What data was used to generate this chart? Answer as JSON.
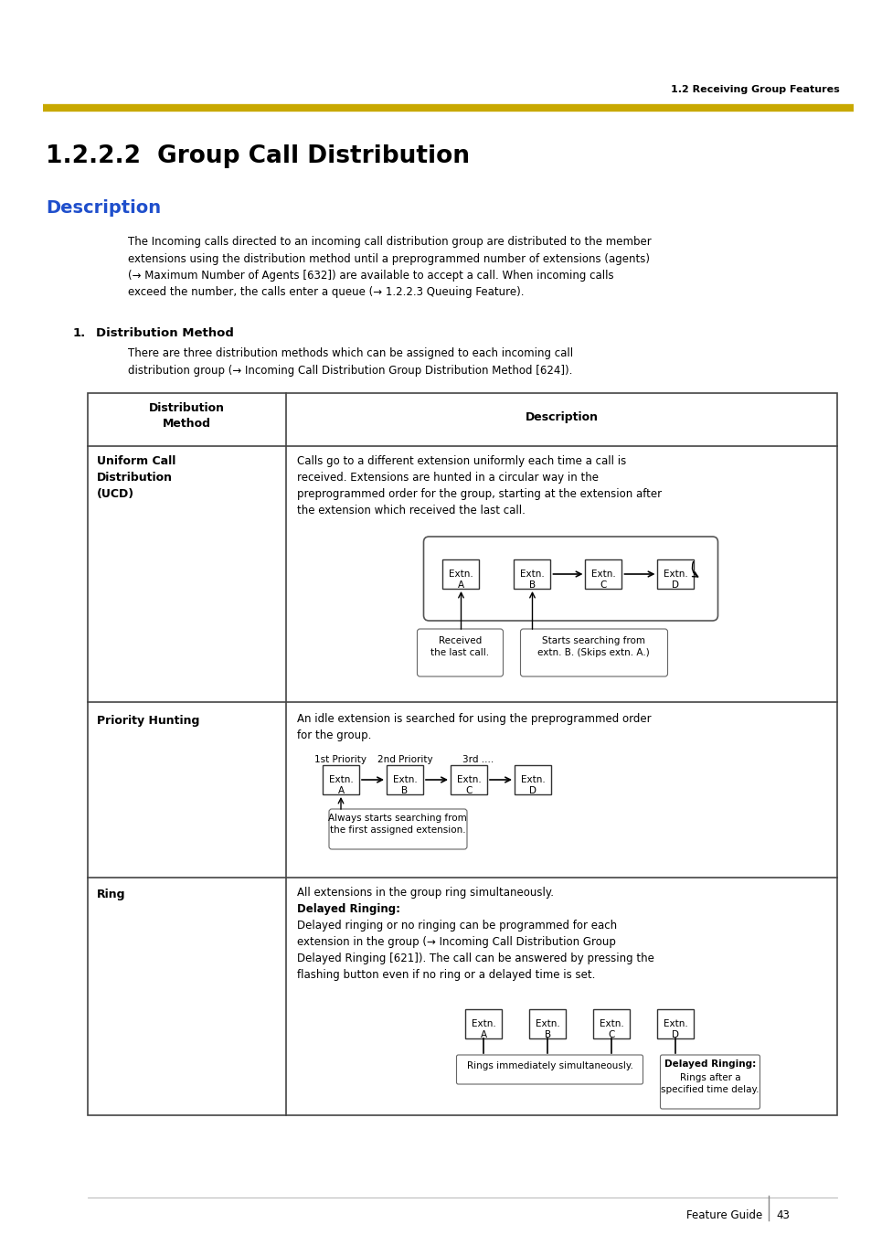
{
  "page_header_text": "1.2 Receiving Group Features",
  "gold_line_color": "#C8A800",
  "section_number": "1.2.2.2",
  "section_title": "Group Call Distribution",
  "description_label": "Description",
  "description_color": "#1F4FCC",
  "body_text": "The Incoming calls directed to an incoming call distribution group are distributed to the member\nextensions using the distribution method until a preprogrammed number of extensions (agents)\n(→ Maximum Number of Agents [632]) are available to accept a call. When incoming calls\nexceed the number, the calls enter a queue (→ 1.2.2.3 Queuing Feature).",
  "item1_label": "1.    Distribution Method",
  "item1_text": "There are three distribution methods which can be assigned to each incoming call\ndistribution group (→ Incoming Call Distribution Group Distribution Method [624]).",
  "table_col1_header": "Distribution\nMethod",
  "table_col2_header": "Description",
  "row1_col1": "Uniform Call\nDistribution\n(UCD)",
  "row1_col2": "Calls go to a different extension uniformly each time a call is\nreceived. Extensions are hunted in a circular way in the\npreprogrammed order for the group, starting at the extension after\nthe extension which received the last call.",
  "row2_col1": "Priority Hunting",
  "row2_col2": "An idle extension is searched for using the preprogrammed order\nfor the group.",
  "row3_col1": "Ring",
  "row3_col2_line1": "All extensions in the group ring simultaneously.",
  "row3_col2_bold": "Delayed Ringing:",
  "row3_col2_rest": "Delayed ringing or no ringing can be programmed for each\nextension in the group (→ Incoming Call Distribution Group\nDelayed Ringing [621]). The call can be answered by pressing the\nflashing button even if no ring or a delayed time is set.",
  "footer_text": "Feature Guide",
  "footer_page": "43",
  "bg_color": "#FFFFFF",
  "text_color": "#000000",
  "border_color": "#000000",
  "table_border_color": "#444444"
}
